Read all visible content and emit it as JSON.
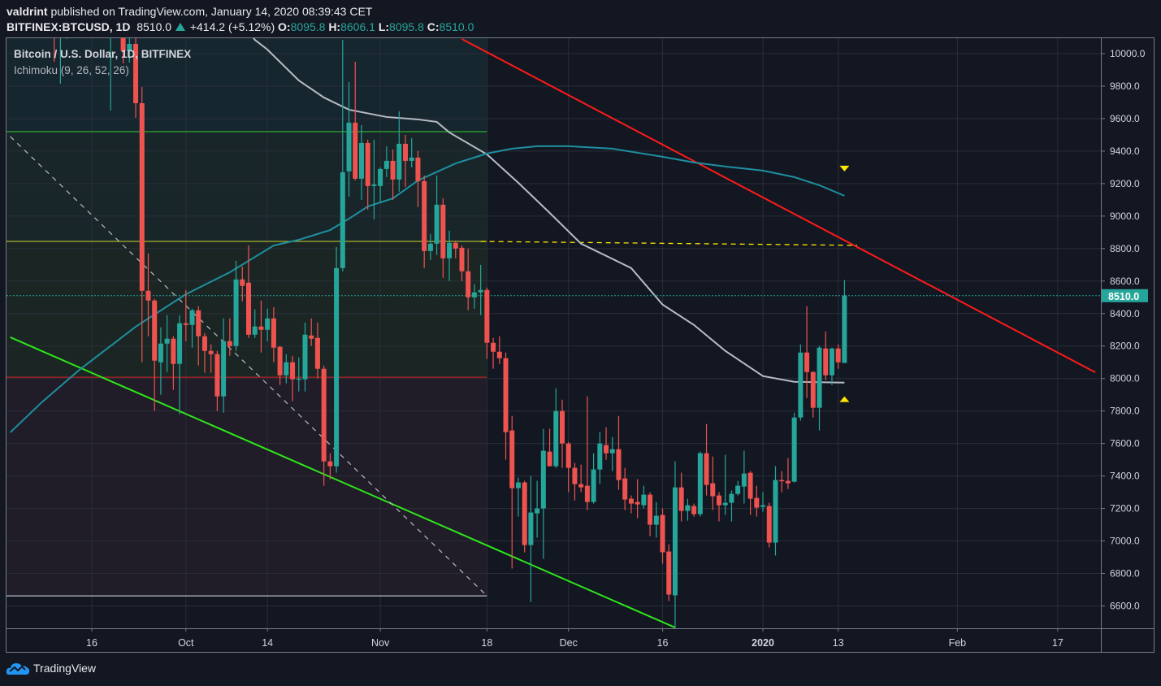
{
  "header": {
    "author": "valdrint",
    "published": "published on TradingView.com, January 14, 2020 08:39:43 CET",
    "symbol": "BITFINEX:BTCUSD, 1D",
    "last": "8510.0",
    "change": "+414.2 (+5.12%)",
    "o_label": "O:",
    "o": "8095.8",
    "h_label": "H:",
    "h": "8606.1",
    "l_label": "L:",
    "l": "8095.8",
    "c_label": "C:",
    "c": "8510.0"
  },
  "legend": {
    "title": "Bitcoin / U.S. Dollar, 1D, BITFINEX",
    "indicator": "Ichimoku (9, 26, 52, 26)"
  },
  "footer": {
    "brand": "TradingView"
  },
  "colors": {
    "background": "#131722",
    "up": "#26a69a",
    "down": "#ef5350",
    "grid": "#2a2e39",
    "ichimoku_grey": "#b8bcc4",
    "ichimoku_teal": "#1e8fa0",
    "trend_red": "#ff1a1a",
    "trend_green": "#2ee61a",
    "level_green": "#2ca02c",
    "level_yellow": "#a8b22a",
    "level_red": "#b22222",
    "marker_yellow": "#ffe600",
    "price_tag": "#26a69a"
  },
  "chart_data": {
    "type": "candlestick",
    "title": "Bitcoin / U.S. Dollar, 1D, BITFINEX",
    "ylim": [
      6460,
      10095
    ],
    "xlim": [
      "2019-09-03",
      "2020-02-26"
    ],
    "grid": true,
    "current_price": 8510.0,
    "current_price_label": "8510.0",
    "y_ticks": [
      "10000.0",
      "9800.0",
      "9600.0",
      "9400.0",
      "9200.0",
      "9000.0",
      "8800.0",
      "8600.0",
      "8400.0",
      "8200.0",
      "8000.0",
      "7800.0",
      "7600.0",
      "7400.0",
      "7200.0",
      "7000.0",
      "6800.0",
      "6600.0"
    ],
    "x_ticks": [
      {
        "date": "2019-09-16",
        "label": "16"
      },
      {
        "date": "2019-10-01",
        "label": "Oct"
      },
      {
        "date": "2019-10-14",
        "label": "14"
      },
      {
        "date": "2019-11-01",
        "label": "Nov"
      },
      {
        "date": "2019-11-18",
        "label": "18"
      },
      {
        "date": "2019-12-01",
        "label": "Dec"
      },
      {
        "date": "2019-12-16",
        "label": "16"
      },
      {
        "date": "2020-01-01",
        "label": "2020"
      },
      {
        "date": "2020-01-13",
        "label": "13"
      },
      {
        "date": "2020-02-01",
        "label": "Feb"
      },
      {
        "date": "2020-02-17",
        "label": "17"
      }
    ],
    "candles_columns": [
      "date",
      "open",
      "high",
      "low",
      "close"
    ],
    "candles": [
      [
        "2019-09-10",
        10320,
        10380,
        9950,
        10110
      ],
      [
        "2019-09-11",
        10110,
        10300,
        9815,
        10150
      ],
      [
        "2019-09-12",
        10150,
        10450,
        10090,
        10420
      ],
      [
        "2019-09-19",
        10170,
        10280,
        9650,
        10260
      ],
      [
        "2019-09-21",
        10180,
        10220,
        9940,
        10015
      ],
      [
        "2019-09-22",
        10015,
        10120,
        9945,
        10060
      ],
      [
        "2019-09-23",
        10060,
        10100,
        9605,
        9695
      ],
      [
        "2019-09-24",
        9695,
        9795,
        8100,
        8540
      ],
      [
        "2019-09-25",
        8540,
        8770,
        8260,
        8480
      ],
      [
        "2019-09-26",
        8480,
        8490,
        7800,
        8110
      ],
      [
        "2019-09-27",
        8100,
        8315,
        7900,
        8215
      ],
      [
        "2019-09-28",
        8215,
        8390,
        8040,
        8245
      ],
      [
        "2019-09-29",
        8245,
        8260,
        7930,
        8090
      ],
      [
        "2019-09-30",
        8090,
        8390,
        7780,
        8340
      ],
      [
        "2019-10-01",
        8340,
        8545,
        8230,
        8330
      ],
      [
        "2019-10-02",
        8330,
        8430,
        8190,
        8420
      ],
      [
        "2019-10-03",
        8420,
        8445,
        8080,
        8260
      ],
      [
        "2019-10-04",
        8260,
        8280,
        8035,
        8170
      ],
      [
        "2019-10-05",
        8170,
        8210,
        8035,
        8150
      ],
      [
        "2019-10-06",
        8150,
        8170,
        7800,
        7890
      ],
      [
        "2019-10-07",
        7890,
        8370,
        7790,
        8230
      ],
      [
        "2019-10-08",
        8230,
        8370,
        8140,
        8200
      ],
      [
        "2019-10-09",
        8200,
        8725,
        8170,
        8610
      ],
      [
        "2019-10-10",
        8610,
        8690,
        8475,
        8570
      ],
      [
        "2019-10-11",
        8590,
        8820,
        8250,
        8270
      ],
      [
        "2019-10-12",
        8270,
        8425,
        8250,
        8320
      ],
      [
        "2019-10-13",
        8320,
        8480,
        8160,
        8300
      ],
      [
        "2019-10-14",
        8300,
        8430,
        8230,
        8370
      ],
      [
        "2019-10-15",
        8370,
        8440,
        8100,
        8190
      ],
      [
        "2019-10-16",
        8195,
        8200,
        7960,
        8020
      ],
      [
        "2019-10-17",
        8020,
        8150,
        7970,
        8100
      ],
      [
        "2019-10-18",
        8100,
        8140,
        7860,
        7995
      ],
      [
        "2019-10-19",
        7995,
        8130,
        7920,
        8000
      ],
      [
        "2019-10-20",
        7995,
        8345,
        7920,
        8270
      ],
      [
        "2019-10-21",
        8265,
        8370,
        8200,
        8245
      ],
      [
        "2019-10-22",
        8250,
        8345,
        8000,
        8060
      ],
      [
        "2019-10-23",
        8060,
        8080,
        7340,
        7490
      ],
      [
        "2019-10-24",
        7490,
        7540,
        7380,
        7460
      ],
      [
        "2019-10-25",
        7460,
        8810,
        7420,
        8680
      ],
      [
        "2019-10-26",
        8680,
        10085,
        8660,
        9270
      ],
      [
        "2019-10-27",
        9275,
        9825,
        9120,
        9575
      ],
      [
        "2019-10-28",
        9575,
        9950,
        9220,
        9230
      ],
      [
        "2019-10-29",
        9230,
        9560,
        9100,
        9450
      ],
      [
        "2019-10-30",
        9450,
        9470,
        9040,
        9185
      ],
      [
        "2019-10-31",
        9185,
        9470,
        8980,
        9195
      ],
      [
        "2019-11-01",
        9185,
        9300,
        9080,
        9290
      ],
      [
        "2019-11-02",
        9290,
        9430,
        9240,
        9340
      ],
      [
        "2019-11-03",
        9340,
        9410,
        9100,
        9225
      ],
      [
        "2019-11-04",
        9225,
        9645,
        9150,
        9445
      ],
      [
        "2019-11-05",
        9445,
        9500,
        9180,
        9340
      ],
      [
        "2019-11-06",
        9340,
        9480,
        9300,
        9360
      ],
      [
        "2019-11-07",
        9360,
        9400,
        9055,
        9215
      ],
      [
        "2019-11-08",
        9215,
        9250,
        8680,
        8785
      ],
      [
        "2019-11-09",
        8785,
        8890,
        8730,
        8830
      ],
      [
        "2019-11-10",
        8830,
        9250,
        8760,
        9070
      ],
      [
        "2019-11-11",
        9070,
        9110,
        8620,
        8740
      ],
      [
        "2019-11-12",
        8740,
        8910,
        8600,
        8835
      ],
      [
        "2019-11-13",
        8835,
        8850,
        8740,
        8800
      ],
      [
        "2019-11-14",
        8805,
        8820,
        8600,
        8660
      ],
      [
        "2019-11-15",
        8660,
        8800,
        8420,
        8500
      ],
      [
        "2019-11-16",
        8500,
        8580,
        8430,
        8530
      ],
      [
        "2019-11-17",
        8530,
        8700,
        8390,
        8545
      ],
      [
        "2019-11-18",
        8545,
        8560,
        8120,
        8220
      ],
      [
        "2019-11-19",
        8220,
        8250,
        8060,
        8165
      ],
      [
        "2019-11-20",
        8165,
        8260,
        8090,
        8125
      ],
      [
        "2019-11-21",
        8125,
        8160,
        7500,
        7670
      ],
      [
        "2019-11-22",
        7680,
        7770,
        6830,
        7325
      ],
      [
        "2019-11-23",
        7325,
        7390,
        7150,
        7360
      ],
      [
        "2019-11-24",
        7360,
        7370,
        6930,
        6975
      ],
      [
        "2019-11-25",
        6975,
        7400,
        6625,
        7175
      ],
      [
        "2019-11-26",
        7170,
        7370,
        7020,
        7200
      ],
      [
        "2019-11-27",
        7200,
        7690,
        6890,
        7555
      ],
      [
        "2019-11-28",
        7550,
        7690,
        7460,
        7460
      ],
      [
        "2019-11-29",
        7460,
        7940,
        7450,
        7800
      ],
      [
        "2019-11-30",
        7800,
        7870,
        7450,
        7600
      ],
      [
        "2019-12-01",
        7600,
        7610,
        7300,
        7450
      ],
      [
        "2019-12-02",
        7450,
        7480,
        7250,
        7350
      ],
      [
        "2019-12-03",
        7350,
        7470,
        7300,
        7330
      ],
      [
        "2019-12-04",
        7340,
        7890,
        7190,
        7240
      ],
      [
        "2019-12-05",
        7240,
        7540,
        7230,
        7440
      ],
      [
        "2019-12-06",
        7440,
        7670,
        7350,
        7600
      ],
      [
        "2019-12-07",
        7590,
        7700,
        7500,
        7540
      ],
      [
        "2019-12-08",
        7540,
        7640,
        7430,
        7565
      ],
      [
        "2019-12-09",
        7565,
        7770,
        7315,
        7375
      ],
      [
        "2019-12-10",
        7385,
        7450,
        7190,
        7255
      ],
      [
        "2019-12-11",
        7260,
        7280,
        7170,
        7230
      ],
      [
        "2019-12-12",
        7240,
        7380,
        7140,
        7225
      ],
      [
        "2019-12-13",
        7220,
        7340,
        7200,
        7285
      ],
      [
        "2019-12-14",
        7285,
        7300,
        7030,
        7100
      ],
      [
        "2019-12-15",
        7100,
        7240,
        7020,
        7155
      ],
      [
        "2019-12-16",
        7160,
        7200,
        6860,
        6930
      ],
      [
        "2019-12-17",
        6935,
        6980,
        6630,
        6670
      ],
      [
        "2019-12-18",
        6665,
        7490,
        6430,
        7330
      ],
      [
        "2019-12-19",
        7330,
        7420,
        7120,
        7185
      ],
      [
        "2019-12-20",
        7185,
        7260,
        7125,
        7220
      ],
      [
        "2019-12-21",
        7215,
        7230,
        7150,
        7165
      ],
      [
        "2019-12-22",
        7165,
        7550,
        7150,
        7540
      ],
      [
        "2019-12-23",
        7540,
        7720,
        7280,
        7345
      ],
      [
        "2019-12-24",
        7355,
        7520,
        7190,
        7275
      ],
      [
        "2019-12-25",
        7280,
        7300,
        7120,
        7220
      ],
      [
        "2019-12-26",
        7220,
        7530,
        7160,
        7235
      ],
      [
        "2019-12-27",
        7235,
        7310,
        7120,
        7290
      ],
      [
        "2019-12-28",
        7290,
        7370,
        7280,
        7340
      ],
      [
        "2019-12-29",
        7335,
        7555,
        7230,
        7415
      ],
      [
        "2019-12-30",
        7420,
        7430,
        7160,
        7260
      ],
      [
        "2019-12-31",
        7265,
        7340,
        7150,
        7205
      ],
      [
        "2020-01-01",
        7210,
        7300,
        7180,
        7220
      ],
      [
        "2020-01-02",
        7215,
        7235,
        6960,
        6990
      ],
      [
        "2020-01-03",
        6990,
        7460,
        6910,
        7375
      ],
      [
        "2020-01-04",
        7375,
        7430,
        7300,
        7370
      ],
      [
        "2020-01-05",
        7370,
        7510,
        7320,
        7355
      ],
      [
        "2020-01-06",
        7365,
        7790,
        7360,
        7760
      ],
      [
        "2020-01-07",
        7760,
        8210,
        7740,
        8160
      ],
      [
        "2020-01-08",
        8160,
        8445,
        7880,
        8040
      ],
      [
        "2020-01-09",
        8040,
        8045,
        7760,
        7820
      ],
      [
        "2020-01-10",
        7820,
        8200,
        7680,
        8190
      ],
      [
        "2020-01-11",
        8185,
        8290,
        7990,
        8020
      ],
      [
        "2020-01-12",
        8020,
        8190,
        7960,
        8185
      ],
      [
        "2020-01-13",
        8185,
        8210,
        8060,
        8100
      ],
      [
        "2020-01-14",
        8095.8,
        8606.1,
        8095.8,
        8510.0
      ]
    ],
    "indicator_lines": [
      {
        "color_key": "ichimoku_grey",
        "points": [
          [
            "2019-10-08",
            10300
          ],
          [
            "2019-10-12",
            10085
          ],
          [
            "2019-10-14",
            10025
          ],
          [
            "2019-10-19",
            9835
          ],
          [
            "2019-10-23",
            9730
          ],
          [
            "2019-10-27",
            9655
          ],
          [
            "2019-11-02",
            9610
          ],
          [
            "2019-11-07",
            9595
          ],
          [
            "2019-11-10",
            9580
          ],
          [
            "2019-11-12",
            9515
          ],
          [
            "2019-11-18",
            9380
          ],
          [
            "2019-11-23",
            9205
          ],
          [
            "2019-11-28",
            9020
          ],
          [
            "2019-12-03",
            8830
          ],
          [
            "2019-12-11",
            8680
          ],
          [
            "2019-12-16",
            8455
          ],
          [
            "2019-12-21",
            8330
          ],
          [
            "2019-12-26",
            8170
          ],
          [
            "2020-01-01",
            8015
          ],
          [
            "2020-01-06",
            7980
          ],
          [
            "2020-01-14",
            7975
          ]
        ]
      },
      {
        "color_key": "ichimoku_teal",
        "points": [
          [
            "2019-09-03",
            7668
          ],
          [
            "2019-09-08",
            7853
          ],
          [
            "2019-09-14",
            8053
          ],
          [
            "2019-09-23",
            8319
          ],
          [
            "2019-10-01",
            8519
          ],
          [
            "2019-10-08",
            8654
          ],
          [
            "2019-10-15",
            8819
          ],
          [
            "2019-10-19",
            8854
          ],
          [
            "2019-10-24",
            8914
          ],
          [
            "2019-10-27",
            8984
          ],
          [
            "2019-10-30",
            9059
          ],
          [
            "2019-11-03",
            9109
          ],
          [
            "2019-11-07",
            9219
          ],
          [
            "2019-11-09",
            9254
          ],
          [
            "2019-11-13",
            9324
          ],
          [
            "2019-11-18",
            9385
          ],
          [
            "2019-11-22",
            9415
          ],
          [
            "2019-11-26",
            9430
          ],
          [
            "2019-12-01",
            9430
          ],
          [
            "2019-12-08",
            9415
          ],
          [
            "2019-12-16",
            9365
          ],
          [
            "2019-12-21",
            9330
          ],
          [
            "2019-12-26",
            9305
          ],
          [
            "2020-01-01",
            9280
          ],
          [
            "2020-01-06",
            9240
          ],
          [
            "2020-01-10",
            9190
          ],
          [
            "2020-01-14",
            9125
          ]
        ]
      }
    ],
    "drawings": {
      "zones_end_date": "2019-11-18",
      "levels": [
        {
          "price": 9520,
          "color_key": "level_green"
        },
        {
          "price": 8844,
          "color_key": "level_yellow"
        },
        {
          "price": 8008,
          "color_key": "level_red"
        },
        {
          "price": 6662,
          "color_key": "ichimoku_grey"
        }
      ],
      "zone_fills": [
        "#16262f",
        "#18262a",
        "#1b2624",
        "#201c28"
      ],
      "trendlines": [
        {
          "from": [
            "2019-11-14",
            10090
          ],
          "to": [
            "2020-02-23",
            8038
          ],
          "color_key": "trend_red"
        },
        {
          "from": [
            "2019-09-03",
            8254
          ],
          "to": [
            "2019-12-18",
            6467
          ],
          "color_key": "trend_green"
        },
        {
          "from": [
            "2019-09-03",
            9490
          ],
          "to": [
            "2019-11-18",
            6662
          ],
          "color_key": "ichimoku_grey",
          "dashed": true
        }
      ],
      "yellow_dashed": {
        "from": [
          "2019-11-17",
          8844
        ],
        "to": [
          "2020-01-16",
          8820
        ]
      },
      "markers": [
        {
          "date": "2020-01-14",
          "price": 9290,
          "shape": "triangle-down"
        },
        {
          "date": "2020-01-14",
          "price": 7870,
          "shape": "triangle-up"
        }
      ]
    }
  }
}
